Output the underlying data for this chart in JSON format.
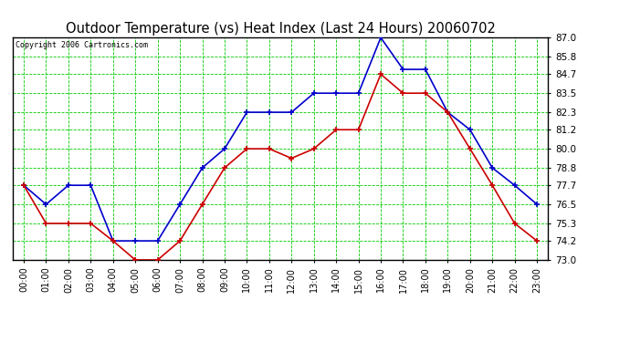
{
  "title": "Outdoor Temperature (vs) Heat Index (Last 24 Hours) 20060702",
  "copyright": "Copyright 2006 Cartronics.com",
  "hours": [
    "00:00",
    "01:00",
    "02:00",
    "03:00",
    "04:00",
    "05:00",
    "06:00",
    "07:00",
    "08:00",
    "09:00",
    "10:00",
    "11:00",
    "12:00",
    "13:00",
    "14:00",
    "15:00",
    "16:00",
    "17:00",
    "18:00",
    "19:00",
    "20:00",
    "21:00",
    "22:00",
    "23:00"
  ],
  "blue_temp": [
    77.7,
    76.5,
    77.7,
    77.7,
    74.2,
    74.2,
    74.2,
    76.5,
    78.8,
    80.0,
    82.3,
    82.3,
    82.3,
    83.5,
    83.5,
    83.5,
    87.0,
    85.0,
    85.0,
    82.3,
    81.2,
    78.8,
    77.7,
    76.5
  ],
  "red_heat": [
    77.7,
    75.3,
    75.3,
    75.3,
    74.2,
    73.0,
    73.0,
    74.2,
    76.5,
    78.8,
    80.0,
    80.0,
    79.4,
    80.0,
    81.2,
    81.2,
    84.7,
    83.5,
    83.5,
    82.3,
    80.0,
    77.7,
    75.3,
    74.2
  ],
  "ylim_min": 73.0,
  "ylim_max": 87.0,
  "yticks": [
    73.0,
    74.2,
    75.3,
    76.5,
    77.7,
    78.8,
    80.0,
    81.2,
    82.3,
    83.5,
    84.7,
    85.8,
    87.0
  ],
  "bg_color": "#ffffff",
  "grid_color": "#00cc00",
  "blue_color": "#0000cc",
  "red_color": "#cc0000",
  "title_color": "#000000",
  "copyright_color": "#000000",
  "left_spine_color": "#000000",
  "right_spine_color": "#000000",
  "top_spine_color": "#000000",
  "bottom_spine_color": "#000000"
}
